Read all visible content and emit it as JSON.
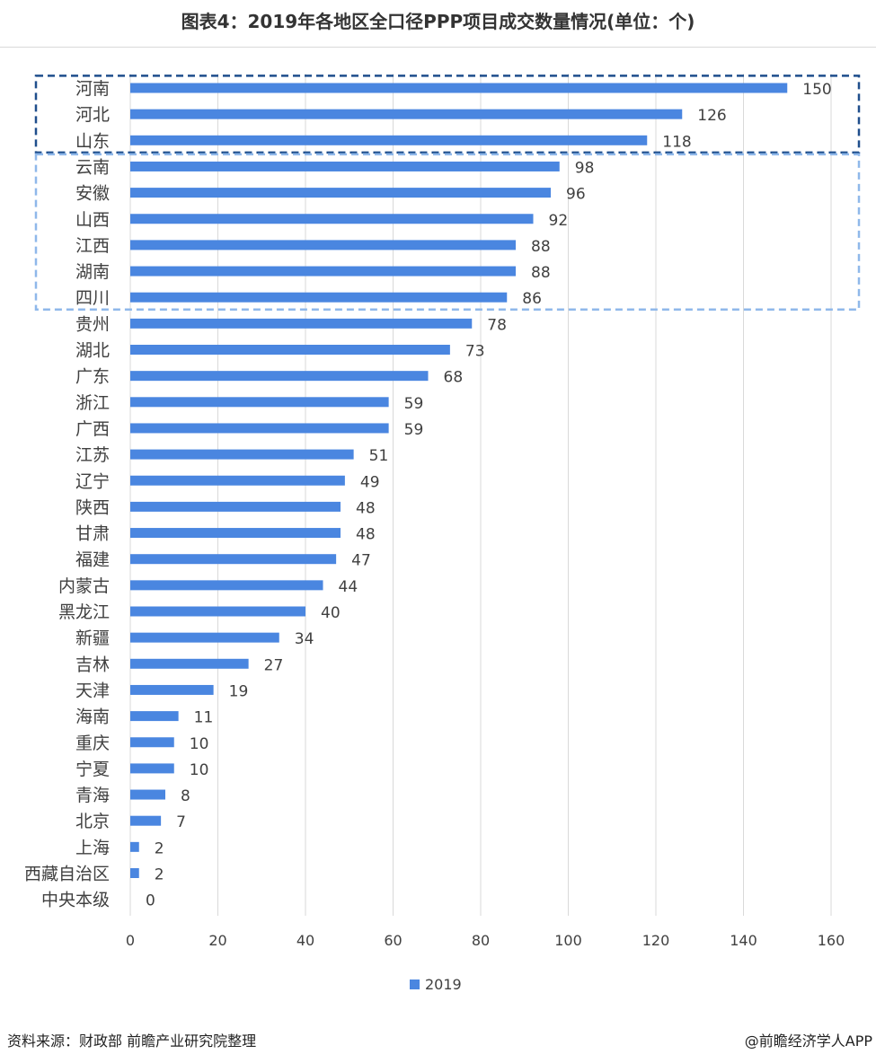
{
  "title": "图表4：2019年各地区全口径PPP项目成交数量情况(单位：个)",
  "source": "资料来源：财政部 前瞻产业研究院整理",
  "credit": "@前瞻经济学人APP",
  "colors": {
    "bar": "#4a86e0",
    "highlight_top": "#1f4e8c",
    "highlight_second": "#8fb8ea",
    "grid": "#d9d9d9"
  },
  "chart_data": {
    "type": "bar",
    "orientation": "horizontal",
    "categories": [
      "河南",
      "河北",
      "山东",
      "云南",
      "安徽",
      "山西",
      "江西",
      "湖南",
      "四川",
      "贵州",
      "湖北",
      "广东",
      "浙江",
      "广西",
      "江苏",
      "辽宁",
      "陕西",
      "甘肃",
      "福建",
      "内蒙古",
      "黑龙江",
      "新疆",
      "吉林",
      "天津",
      "海南",
      "重庆",
      "宁夏",
      "青海",
      "北京",
      "上海",
      "西藏自治区",
      "中央本级"
    ],
    "series": [
      {
        "name": "2019",
        "values": [
          150,
          126,
          118,
          98,
          96,
          92,
          88,
          88,
          86,
          78,
          73,
          68,
          59,
          59,
          51,
          49,
          48,
          48,
          47,
          44,
          40,
          34,
          27,
          19,
          11,
          10,
          10,
          8,
          7,
          2,
          2,
          0
        ]
      }
    ],
    "xlim": [
      0,
      160
    ],
    "xticks": [
      0,
      20,
      40,
      60,
      80,
      100,
      120,
      140,
      160
    ],
    "grid": true,
    "legend": "bottom",
    "highlight_groups": [
      {
        "from": 0,
        "to": 2,
        "style": "dark-dashed"
      },
      {
        "from": 3,
        "to": 8,
        "style": "light-dashed"
      }
    ]
  }
}
